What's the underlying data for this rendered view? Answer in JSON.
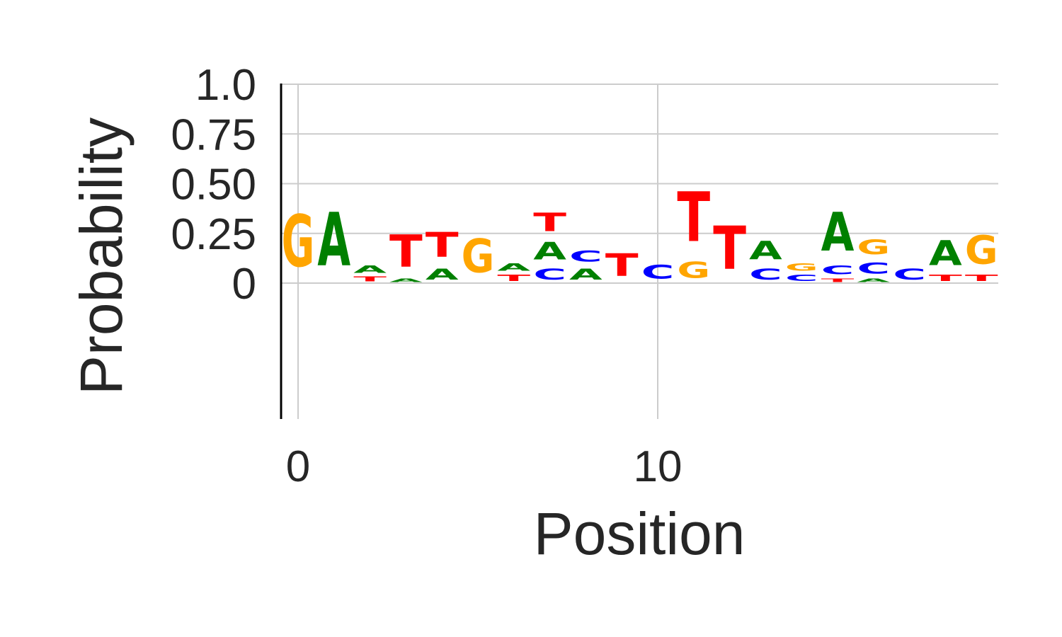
{
  "chart_data": {
    "type": "sequence-logo",
    "xlabel": "Position",
    "ylabel": "Probability",
    "xlim": [
      -0.5,
      19.0
    ],
    "ylim": [
      -0.27,
      1.0
    ],
    "x_ticks": [
      {
        "value": 0,
        "label": "0"
      },
      {
        "value": 10,
        "label": "10"
      }
    ],
    "y_ticks": [
      {
        "value": 0,
        "label": "0"
      },
      {
        "value": 0.25,
        "label": "0.25"
      },
      {
        "value": 0.5,
        "label": "0.50"
      },
      {
        "value": 0.75,
        "label": "0.75"
      },
      {
        "value": 1.0,
        "label": "1.0"
      }
    ],
    "grid": true,
    "colors": {
      "A": "#008000",
      "C": "#0000ff",
      "G": "#ffa500",
      "T": "#ff0000"
    },
    "positions": [
      {
        "pos": 0,
        "letters": [
          {
            "base": "G",
            "p": 0.42
          }
        ]
      },
      {
        "pos": 1,
        "letters": [
          {
            "base": "A",
            "p": 0.43
          }
        ]
      },
      {
        "pos": 2,
        "letters": [
          {
            "base": "T",
            "p": 0.04
          },
          {
            "base": "A",
            "p": 0.06
          }
        ]
      },
      {
        "pos": 3,
        "letters": [
          {
            "base": "A",
            "p": 0.03
          },
          {
            "base": "T",
            "p": 0.26
          }
        ]
      },
      {
        "pos": 4,
        "letters": [
          {
            "base": "A",
            "p": 0.09
          },
          {
            "base": "T",
            "p": 0.2
          }
        ]
      },
      {
        "pos": 5,
        "letters": [
          {
            "base": "G",
            "p": 0.27
          }
        ]
      },
      {
        "pos": 6,
        "letters": [
          {
            "base": "T",
            "p": 0.05
          },
          {
            "base": "A",
            "p": 0.06
          }
        ]
      },
      {
        "pos": 7,
        "letters": [
          {
            "base": "C",
            "p": 0.09
          },
          {
            "base": "A",
            "p": 0.14
          },
          {
            "base": "T",
            "p": 0.15
          }
        ]
      },
      {
        "pos": 8,
        "letters": [
          {
            "base": "A",
            "p": 0.09
          },
          {
            "base": "C",
            "p": 0.09
          }
        ]
      },
      {
        "pos": 9,
        "letters": [
          {
            "base": "T",
            "p": 0.18
          }
        ]
      },
      {
        "pos": 10,
        "letters": [
          {
            "base": "C",
            "p": 0.11
          }
        ]
      },
      {
        "pos": 11,
        "letters": [
          {
            "base": "G",
            "p": 0.13
          },
          {
            "base": "T",
            "p": 0.4
          }
        ]
      },
      {
        "pos": 12,
        "letters": [
          {
            "base": "T",
            "p": 0.35
          }
        ]
      },
      {
        "pos": 13,
        "letters": [
          {
            "base": "C",
            "p": 0.09
          },
          {
            "base": "A",
            "p": 0.15
          }
        ]
      },
      {
        "pos": 14,
        "letters": [
          {
            "base": "C",
            "p": 0.05
          },
          {
            "base": "G",
            "p": 0.06
          }
        ]
      },
      {
        "pos": 15,
        "letters": [
          {
            "base": "T",
            "p": 0.03
          },
          {
            "base": "C",
            "p": 0.07
          },
          {
            "base": "A",
            "p": 0.31
          }
        ]
      },
      {
        "pos": 16,
        "letters": [
          {
            "base": "A",
            "p": 0.03
          },
          {
            "base": "C",
            "p": 0.09
          },
          {
            "base": "G",
            "p": 0.12
          }
        ]
      },
      {
        "pos": 17,
        "letters": [
          {
            "base": "C",
            "p": 0.09
          }
        ]
      },
      {
        "pos": 18,
        "letters": [
          {
            "base": "T",
            "p": 0.05
          },
          {
            "base": "A",
            "p": 0.2
          }
        ]
      },
      {
        "pos": 19,
        "letters": [
          {
            "base": "T",
            "p": 0.05
          },
          {
            "base": "G",
            "p": 0.23
          }
        ]
      }
    ]
  }
}
